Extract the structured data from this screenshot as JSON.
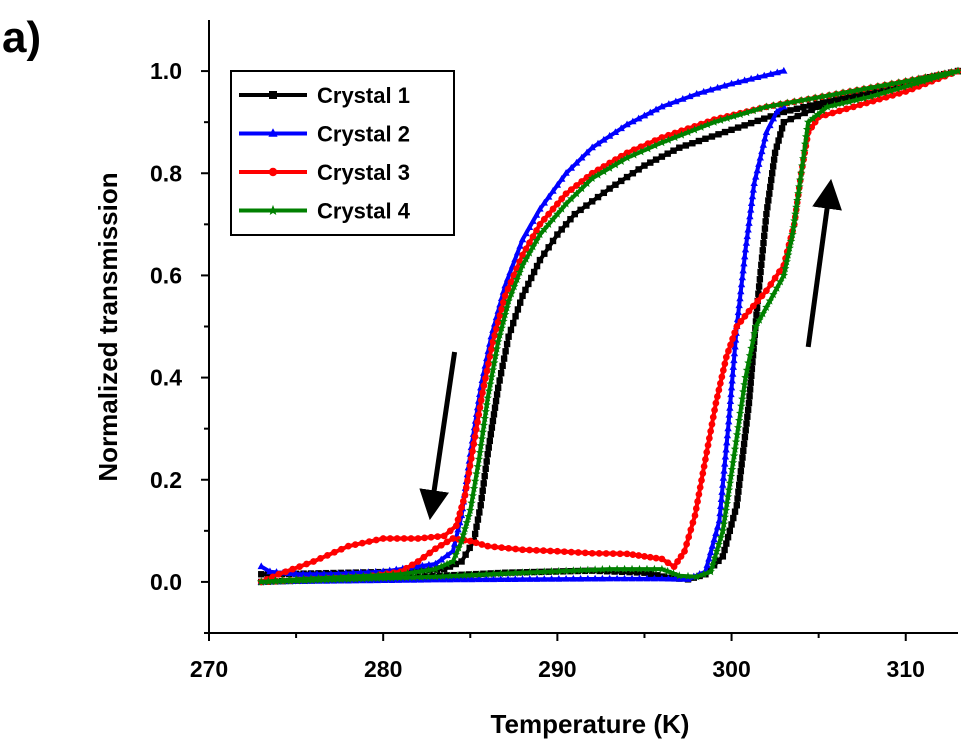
{
  "panel_label": "a)",
  "chart_data": {
    "type": "line",
    "xlabel": "Temperature (K)",
    "ylabel": "Normalized transmission",
    "xlim": [
      270,
      313
    ],
    "ylim": [
      -0.1,
      1.1
    ],
    "x_ticks": [
      270,
      280,
      290,
      300,
      310
    ],
    "x_tick_labels": [
      "270",
      "280",
      "290",
      "300",
      "310"
    ],
    "y_ticks": [
      0.0,
      0.2,
      0.4,
      0.6,
      0.8,
      1.0
    ],
    "y_tick_labels": [
      "0.0",
      "0.2",
      "0.4",
      "0.6",
      "0.8",
      "1.0"
    ],
    "grid": false,
    "legend_position": "top-left",
    "series": [
      {
        "name": "Crystal 1",
        "color": "#000000",
        "marker": "square",
        "cooling": [
          [
            313,
            1.0
          ],
          [
            310,
            0.975
          ],
          [
            306,
            0.945
          ],
          [
            303,
            0.92
          ],
          [
            300,
            0.885
          ],
          [
            297,
            0.85
          ],
          [
            295,
            0.815
          ],
          [
            293,
            0.77
          ],
          [
            291,
            0.72
          ],
          [
            290,
            0.68
          ],
          [
            289,
            0.63
          ],
          [
            288,
            0.56
          ],
          [
            287.2,
            0.48
          ],
          [
            286.6,
            0.38
          ],
          [
            286,
            0.25
          ],
          [
            285.6,
            0.15
          ],
          [
            285.2,
            0.08
          ],
          [
            284.5,
            0.04
          ],
          [
            283.5,
            0.025
          ],
          [
            281,
            0.02
          ],
          [
            278,
            0.018
          ],
          [
            275,
            0.016
          ],
          [
            273,
            0.015
          ]
        ],
        "heating": [
          [
            273,
            0.0
          ],
          [
            277,
            0.005
          ],
          [
            282,
            0.01
          ],
          [
            287,
            0.018
          ],
          [
            292,
            0.022
          ],
          [
            295,
            0.018
          ],
          [
            296.5,
            0.008
          ],
          [
            297.5,
            0.005
          ],
          [
            298.5,
            0.015
          ],
          [
            299.5,
            0.05
          ],
          [
            300.3,
            0.15
          ],
          [
            301,
            0.35
          ],
          [
            301.5,
            0.55
          ],
          [
            302,
            0.72
          ],
          [
            302.5,
            0.84
          ],
          [
            303,
            0.9
          ],
          [
            305,
            0.93
          ],
          [
            308,
            0.955
          ],
          [
            311,
            0.985
          ],
          [
            313,
            1.0
          ]
        ]
      },
      {
        "name": "Crystal 2",
        "color": "#0000ff",
        "marker": "triangle",
        "cooling": [
          [
            303,
            1.0
          ],
          [
            300,
            0.975
          ],
          [
            298,
            0.955
          ],
          [
            296,
            0.93
          ],
          [
            294,
            0.895
          ],
          [
            292,
            0.85
          ],
          [
            290.5,
            0.8
          ],
          [
            289,
            0.73
          ],
          [
            288,
            0.67
          ],
          [
            287,
            0.58
          ],
          [
            286.2,
            0.48
          ],
          [
            285.6,
            0.38
          ],
          [
            285,
            0.25
          ],
          [
            284.5,
            0.13
          ],
          [
            284,
            0.06
          ],
          [
            283,
            0.035
          ],
          [
            280,
            0.02
          ],
          [
            277,
            0.015
          ],
          [
            275,
            0.015
          ],
          [
            273.5,
            0.02
          ],
          [
            273,
            0.03
          ]
        ],
        "heating": [
          [
            273,
            0.0
          ],
          [
            278,
            0.002
          ],
          [
            283,
            0.004
          ],
          [
            288,
            0.005
          ],
          [
            293,
            0.006
          ],
          [
            296,
            0.006
          ],
          [
            297.5,
            0.005
          ],
          [
            298.5,
            0.02
          ],
          [
            299.3,
            0.12
          ],
          [
            299.8,
            0.3
          ],
          [
            300.3,
            0.5
          ],
          [
            300.8,
            0.65
          ],
          [
            301.3,
            0.78
          ],
          [
            302,
            0.88
          ],
          [
            302.6,
            0.92
          ],
          [
            303,
            0.93
          ]
        ]
      },
      {
        "name": "Crystal 3",
        "color": "#ff0000",
        "marker": "circle",
        "cooling": [
          [
            313,
            1.0
          ],
          [
            310,
            0.98
          ],
          [
            306,
            0.955
          ],
          [
            302,
            0.93
          ],
          [
            299,
            0.905
          ],
          [
            296,
            0.87
          ],
          [
            294,
            0.84
          ],
          [
            292,
            0.8
          ],
          [
            290.5,
            0.76
          ],
          [
            289,
            0.7
          ],
          [
            288,
            0.64
          ],
          [
            287,
            0.56
          ],
          [
            286.3,
            0.47
          ],
          [
            285.7,
            0.37
          ],
          [
            285.2,
            0.27
          ],
          [
            284.7,
            0.17
          ],
          [
            284.2,
            0.11
          ],
          [
            283.5,
            0.09
          ],
          [
            282,
            0.085
          ],
          [
            280,
            0.085
          ],
          [
            278,
            0.07
          ],
          [
            276,
            0.04
          ],
          [
            274,
            0.015
          ],
          [
            273,
            0.0
          ]
        ],
        "heating": [
          [
            273,
            0.0
          ],
          [
            276,
            0.005
          ],
          [
            279,
            0.01
          ],
          [
            281,
            0.02
          ],
          [
            282,
            0.04
          ],
          [
            283,
            0.065
          ],
          [
            284,
            0.085
          ],
          [
            285,
            0.08
          ],
          [
            286,
            0.07
          ],
          [
            288,
            0.063
          ],
          [
            290,
            0.06
          ],
          [
            292,
            0.056
          ],
          [
            294,
            0.055
          ],
          [
            295,
            0.05
          ],
          [
            296,
            0.045
          ],
          [
            296.7,
            0.03
          ],
          [
            297.3,
            0.06
          ],
          [
            297.9,
            0.13
          ],
          [
            298.5,
            0.24
          ],
          [
            299.1,
            0.35
          ],
          [
            299.7,
            0.44
          ],
          [
            300.3,
            0.5
          ],
          [
            301,
            0.53
          ],
          [
            302,
            0.57
          ],
          [
            303,
            0.62
          ],
          [
            303.6,
            0.7
          ],
          [
            304,
            0.8
          ],
          [
            304.4,
            0.88
          ],
          [
            305,
            0.91
          ],
          [
            307,
            0.93
          ],
          [
            310,
            0.96
          ],
          [
            313,
            1.0
          ]
        ]
      },
      {
        "name": "Crystal 4",
        "color": "#008000",
        "marker": "star",
        "cooling": [
          [
            313,
            1.0
          ],
          [
            310,
            0.98
          ],
          [
            306,
            0.955
          ],
          [
            302,
            0.93
          ],
          [
            299,
            0.9
          ],
          [
            296,
            0.86
          ],
          [
            294,
            0.83
          ],
          [
            292,
            0.79
          ],
          [
            290.5,
            0.74
          ],
          [
            289,
            0.68
          ],
          [
            288,
            0.62
          ],
          [
            287.2,
            0.55
          ],
          [
            286.6,
            0.47
          ],
          [
            286,
            0.36
          ],
          [
            285.5,
            0.24
          ],
          [
            285,
            0.14
          ],
          [
            284.5,
            0.08
          ],
          [
            284,
            0.04
          ],
          [
            283,
            0.025
          ],
          [
            281,
            0.015
          ],
          [
            278,
            0.01
          ],
          [
            275,
            0.005
          ],
          [
            273,
            0.0
          ]
        ],
        "heating": [
          [
            273,
            0.0
          ],
          [
            278,
            0.005
          ],
          [
            283,
            0.01
          ],
          [
            288,
            0.018
          ],
          [
            293,
            0.025
          ],
          [
            296,
            0.025
          ],
          [
            297,
            0.012
          ],
          [
            298,
            0.01
          ],
          [
            298.8,
            0.02
          ],
          [
            299.5,
            0.1
          ],
          [
            300.2,
            0.26
          ],
          [
            300.8,
            0.4
          ],
          [
            301.4,
            0.5
          ],
          [
            302.2,
            0.55
          ],
          [
            303,
            0.6
          ],
          [
            303.5,
            0.68
          ],
          [
            304,
            0.8
          ],
          [
            304.4,
            0.9
          ],
          [
            305.5,
            0.93
          ],
          [
            308,
            0.95
          ],
          [
            311,
            0.98
          ],
          [
            313,
            1.0
          ]
        ]
      }
    ],
    "annotations": [
      {
        "type": "arrow",
        "direction": "down",
        "from": [
          284.1,
          0.45
        ],
        "to": [
          282.8,
          0.15
        ]
      },
      {
        "type": "arrow",
        "direction": "up",
        "from": [
          304.4,
          0.46
        ],
        "to": [
          305.6,
          0.76
        ]
      }
    ]
  }
}
